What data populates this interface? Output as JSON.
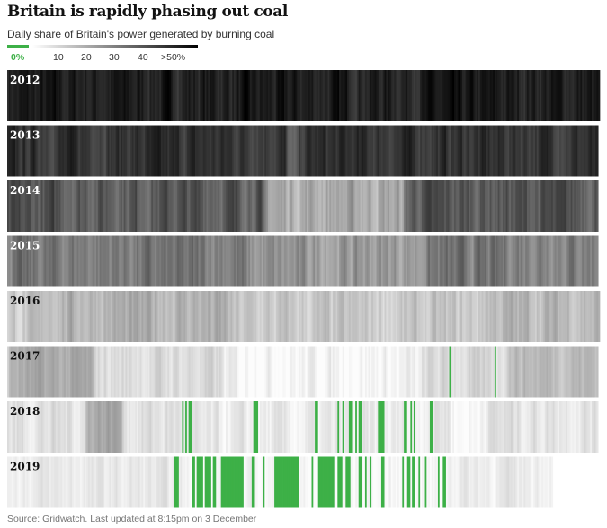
{
  "header": {
    "title": "Britain is rapidly phasing out coal",
    "subtitle": "Daily share of Britain's power generated by burning coal"
  },
  "legend": {
    "labels": [
      "0%",
      "10",
      "20",
      "30",
      "40",
      ">50%"
    ],
    "zero_color": "#3db047"
  },
  "footer": {
    "source": "Source: Gridwatch. Last updated at 8:15pm on 3 December"
  },
  "colors": {
    "zero": "#3db047",
    "low": "#ffffff",
    "high": "#000000"
  },
  "chart_data": {
    "type": "heatmap",
    "title": "Britain is rapidly phasing out coal",
    "subtitle": "Daily share of Britain's power generated by burning coal",
    "unit": "% of daily power generation from coal",
    "scale": {
      "min": 0,
      "max": 50,
      "max_label": ">50%",
      "zero_color": "#3db047"
    },
    "years": [
      {
        "year": "2012",
        "days": 366,
        "typical_share": 44,
        "spread": 5,
        "low_segments": []
      },
      {
        "year": "2013",
        "days": 365,
        "typical_share": 40,
        "spread": 5,
        "low_segments": [
          [
            0.47,
            0.49,
            26
          ]
        ]
      },
      {
        "year": "2014",
        "days": 365,
        "typical_share": 33,
        "spread": 6,
        "low_segments": [
          [
            0.43,
            0.67,
            17
          ]
        ]
      },
      {
        "year": "2015",
        "days": 365,
        "typical_share": 26,
        "spread": 6,
        "low_segments": [
          [
            0.4,
            0.7,
            20
          ]
        ]
      },
      {
        "year": "2016",
        "days": 366,
        "typical_share": 10,
        "spread": 5,
        "low_segments": [
          [
            0.06,
            0.37,
            15
          ],
          [
            0.8,
            1.0,
            14
          ]
        ]
      },
      {
        "year": "2017",
        "days": 365,
        "typical_share": 7,
        "spread": 4,
        "low_segments": [
          [
            0.0,
            0.14,
            16
          ],
          [
            0.36,
            0.7,
            2
          ],
          [
            0.84,
            1.0,
            14
          ]
        ],
        "zero_day_ranges": [
          [
            0.747,
            0.749
          ],
          [
            0.823,
            0.826
          ]
        ]
      },
      {
        "year": "2018",
        "days": 365,
        "typical_share": 6,
        "spread": 4,
        "low_segments": [
          [
            0.13,
            0.19,
            18
          ],
          [
            0.3,
            0.7,
            3
          ],
          [
            0.75,
            0.8,
            1
          ]
        ],
        "zero_day_ranges": [
          [
            0.294,
            0.296
          ],
          [
            0.301,
            0.303
          ],
          [
            0.306,
            0.311
          ],
          [
            0.416,
            0.422
          ],
          [
            0.52,
            0.526
          ],
          [
            0.557,
            0.561
          ],
          [
            0.565,
            0.569
          ],
          [
            0.578,
            0.582
          ],
          [
            0.587,
            0.59
          ],
          [
            0.594,
            0.6
          ],
          [
            0.626,
            0.636
          ],
          [
            0.67,
            0.674
          ],
          [
            0.681,
            0.684
          ],
          [
            0.687,
            0.69
          ],
          [
            0.713,
            0.719
          ]
        ]
      },
      {
        "year": "2019",
        "days": 337,
        "typical_share": 4,
        "spread": 3,
        "low_segments": [
          [
            0.32,
            0.8,
            1
          ]
        ],
        "zero_day_ranges": [
          [
            0.303,
            0.313
          ],
          [
            0.336,
            0.342
          ],
          [
            0.347,
            0.359
          ],
          [
            0.362,
            0.372
          ],
          [
            0.374,
            0.38
          ],
          [
            0.39,
            0.433
          ],
          [
            0.448,
            0.452
          ],
          [
            0.466,
            0.469
          ],
          [
            0.488,
            0.534
          ],
          [
            0.555,
            0.559
          ],
          [
            0.567,
            0.597
          ],
          [
            0.604,
            0.612
          ],
          [
            0.619,
            0.628
          ],
          [
            0.642,
            0.649
          ],
          [
            0.654,
            0.657
          ],
          [
            0.662,
            0.666
          ],
          [
            0.684,
            0.69
          ],
          [
            0.722,
            0.727
          ],
          [
            0.731,
            0.736
          ],
          [
            0.741,
            0.746
          ],
          [
            0.752,
            0.755
          ],
          [
            0.764,
            0.766
          ],
          [
            0.789,
            0.792
          ],
          [
            0.798,
            0.802
          ]
        ]
      }
    ]
  }
}
